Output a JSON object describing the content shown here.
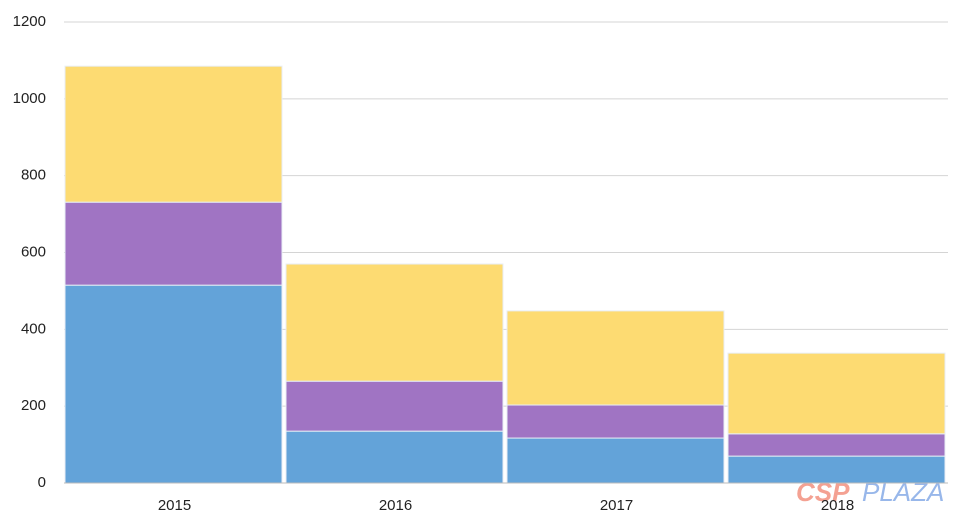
{
  "chart_data": {
    "type": "stacked_bar",
    "categories": [
      "2015",
      "2016",
      "2017",
      "2018"
    ],
    "series": [
      {
        "color": "#63a3d9",
        "values": [
          515,
          135,
          117,
          70
        ]
      },
      {
        "color": "#a074c3",
        "values": [
          216,
          130,
          86,
          58
        ]
      },
      {
        "color": "#fddb72",
        "values": [
          354,
          305,
          245,
          210
        ]
      }
    ],
    "ylim": [
      0,
      1200
    ],
    "yticks": [
      0,
      200,
      400,
      600,
      800,
      1000,
      1200
    ],
    "grid": true,
    "watermark": [
      "CSP",
      "PLAZA"
    ]
  }
}
